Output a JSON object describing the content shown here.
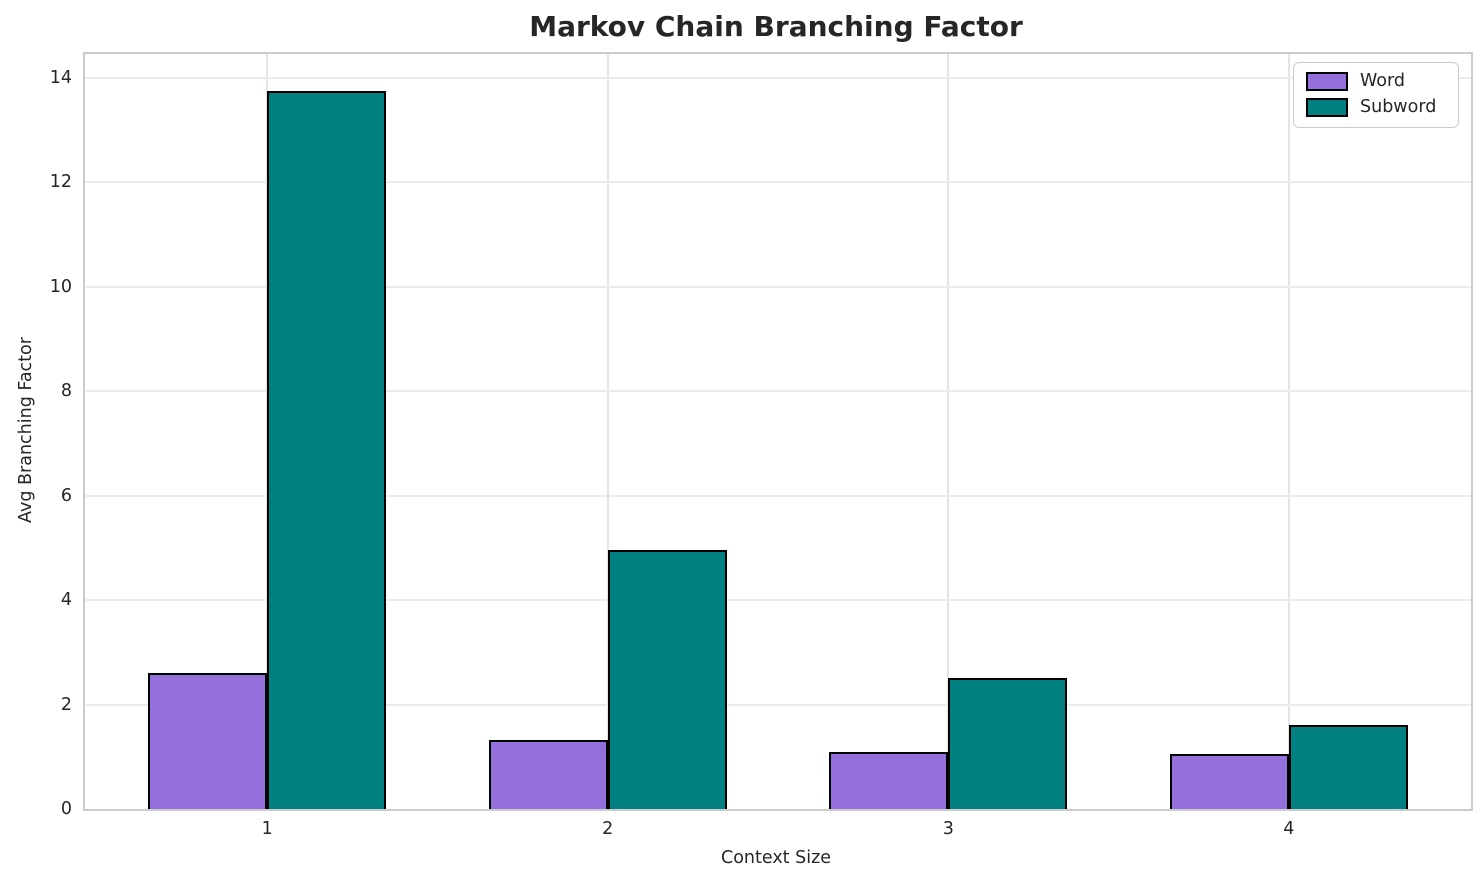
{
  "title": "Markov Chain Branching Factor",
  "axes": {
    "xlabel": "Context Size",
    "ylabel": "Avg Branching Factor"
  },
  "legend": {
    "items": [
      {
        "label": "Word",
        "color": "#9370DB"
      },
      {
        "label": "Subword",
        "color": "#008080"
      }
    ]
  },
  "chart_data": {
    "type": "bar",
    "title": "Markov Chain Branching Factor",
    "xlabel": "Context Size",
    "ylabel": "Avg Branching Factor",
    "categories": [
      "1",
      "2",
      "3",
      "4"
    ],
    "series": [
      {
        "name": "Word",
        "color": "#9370DB",
        "values": [
          2.6,
          1.32,
          1.1,
          1.05
        ]
      },
      {
        "name": "Subword",
        "color": "#008080",
        "values": [
          13.75,
          4.95,
          2.5,
          1.6
        ]
      }
    ],
    "ylim": [
      0,
      14.45
    ],
    "yticks": [
      0,
      2,
      4,
      6,
      8,
      10,
      12,
      14
    ],
    "bar_width": 0.35,
    "bar_edge_color": "#000000",
    "grid": true,
    "grid_color": "#ececec",
    "spine_color": "#cccccc",
    "legend_position": "upper right"
  }
}
